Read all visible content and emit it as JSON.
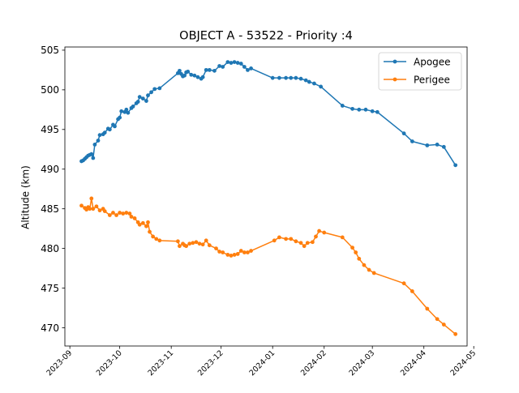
{
  "chart_data": {
    "type": "line",
    "title": "OBJECT A - 53522 - Priority :4",
    "xlabel": "",
    "ylabel": "Altitude (km)",
    "xlim": [
      "2023-08-29",
      "2024-04-27"
    ],
    "ylim": [
      467.7,
      505.4
    ],
    "x_ticks": [
      "2023-09",
      "2023-10",
      "2023-11",
      "2023-12",
      "2024-01",
      "2024-02",
      "2024-03",
      "2024-04",
      "2024-05"
    ],
    "y_ticks": [
      470,
      475,
      480,
      485,
      490,
      495,
      500,
      505
    ],
    "grid": false,
    "legend_position": "top-right",
    "series": [
      {
        "name": "Apogee",
        "color": "#1f77b4",
        "points": [
          [
            "2023-09-08",
            491.0
          ],
          [
            "2023-09-09",
            491.1
          ],
          [
            "2023-09-10",
            491.3
          ],
          [
            "2023-09-11",
            491.5
          ],
          [
            "2023-09-12",
            491.7
          ],
          [
            "2023-09-13",
            491.8
          ],
          [
            "2023-09-14",
            491.9
          ],
          [
            "2023-09-15",
            491.4
          ],
          [
            "2023-09-16",
            493.1
          ],
          [
            "2023-09-18",
            493.6
          ],
          [
            "2023-09-19",
            494.3
          ],
          [
            "2023-09-21",
            494.4
          ],
          [
            "2023-09-22",
            494.6
          ],
          [
            "2023-09-24",
            495.1
          ],
          [
            "2023-09-25",
            495.0
          ],
          [
            "2023-09-27",
            495.6
          ],
          [
            "2023-09-28",
            495.4
          ],
          [
            "2023-09-30",
            496.3
          ],
          [
            "2023-10-01",
            496.5
          ],
          [
            "2023-10-02",
            497.3
          ],
          [
            "2023-10-04",
            497.2
          ],
          [
            "2023-10-05",
            497.5
          ],
          [
            "2023-10-06",
            497.1
          ],
          [
            "2023-10-08",
            497.7
          ],
          [
            "2023-10-09",
            497.9
          ],
          [
            "2023-10-11",
            498.3
          ],
          [
            "2023-10-12",
            498.5
          ],
          [
            "2023-10-13",
            499.1
          ],
          [
            "2023-10-15",
            498.9
          ],
          [
            "2023-10-17",
            498.6
          ],
          [
            "2023-10-18",
            499.3
          ],
          [
            "2023-10-20",
            499.7
          ],
          [
            "2023-10-22",
            500.1
          ],
          [
            "2023-10-25",
            500.2
          ],
          [
            "2023-11-05",
            502.1
          ],
          [
            "2023-11-06",
            502.4
          ],
          [
            "2023-11-07",
            502.0
          ],
          [
            "2023-11-08",
            501.7
          ],
          [
            "2023-11-09",
            501.8
          ],
          [
            "2023-11-10",
            502.2
          ],
          [
            "2023-11-11",
            502.3
          ],
          [
            "2023-11-13",
            501.9
          ],
          [
            "2023-11-15",
            501.8
          ],
          [
            "2023-11-17",
            501.6
          ],
          [
            "2023-11-19",
            501.4
          ],
          [
            "2023-11-20",
            501.6
          ],
          [
            "2023-11-22",
            502.5
          ],
          [
            "2023-11-24",
            502.5
          ],
          [
            "2023-11-27",
            502.4
          ],
          [
            "2023-11-30",
            503.0
          ],
          [
            "2023-12-02",
            502.9
          ],
          [
            "2023-12-05",
            503.5
          ],
          [
            "2023-12-07",
            503.4
          ],
          [
            "2023-12-09",
            503.5
          ],
          [
            "2023-12-11",
            503.4
          ],
          [
            "2023-12-13",
            503.3
          ],
          [
            "2023-12-15",
            502.9
          ],
          [
            "2023-12-17",
            502.5
          ],
          [
            "2023-12-19",
            502.7
          ],
          [
            "2024-01-01",
            501.5
          ],
          [
            "2024-01-05",
            501.5
          ],
          [
            "2024-01-09",
            501.5
          ],
          [
            "2024-01-12",
            501.5
          ],
          [
            "2024-01-15",
            501.5
          ],
          [
            "2024-01-18",
            501.4
          ],
          [
            "2024-01-21",
            501.2
          ],
          [
            "2024-01-23",
            501.0
          ],
          [
            "2024-01-26",
            500.8
          ],
          [
            "2024-01-30",
            500.4
          ],
          [
            "2024-02-12",
            498.0
          ],
          [
            "2024-02-18",
            497.6
          ],
          [
            "2024-02-22",
            497.5
          ],
          [
            "2024-02-26",
            497.5
          ],
          [
            "2024-03-01",
            497.3
          ],
          [
            "2024-03-04",
            497.2
          ],
          [
            "2024-03-20",
            494.5
          ],
          [
            "2024-03-25",
            493.5
          ],
          [
            "2024-04-03",
            493.0
          ],
          [
            "2024-04-09",
            493.1
          ],
          [
            "2024-04-13",
            492.8
          ],
          [
            "2024-04-20",
            490.5
          ]
        ]
      },
      {
        "name": "Perigee",
        "color": "#ff7f0e",
        "points": [
          [
            "2023-09-08",
            485.4
          ],
          [
            "2023-09-10",
            485.1
          ],
          [
            "2023-09-11",
            484.9
          ],
          [
            "2023-09-12",
            485.2
          ],
          [
            "2023-09-13",
            485.0
          ],
          [
            "2023-09-14",
            486.3
          ],
          [
            "2023-09-15",
            485.0
          ],
          [
            "2023-09-17",
            485.3
          ],
          [
            "2023-09-19",
            484.8
          ],
          [
            "2023-09-21",
            485.0
          ],
          [
            "2023-09-22",
            484.7
          ],
          [
            "2023-09-25",
            484.2
          ],
          [
            "2023-09-27",
            484.5
          ],
          [
            "2023-09-29",
            484.2
          ],
          [
            "2023-10-01",
            484.5
          ],
          [
            "2023-10-03",
            484.4
          ],
          [
            "2023-10-05",
            484.5
          ],
          [
            "2023-10-07",
            484.4
          ],
          [
            "2023-10-08",
            484.0
          ],
          [
            "2023-10-10",
            483.8
          ],
          [
            "2023-10-12",
            483.3
          ],
          [
            "2023-10-13",
            483.0
          ],
          [
            "2023-10-15",
            483.2
          ],
          [
            "2023-10-17",
            482.8
          ],
          [
            "2023-10-18",
            483.3
          ],
          [
            "2023-10-19",
            482.1
          ],
          [
            "2023-10-21",
            481.5
          ],
          [
            "2023-10-23",
            481.2
          ],
          [
            "2023-10-25",
            481.0
          ],
          [
            "2023-11-05",
            480.9
          ],
          [
            "2023-11-06",
            480.3
          ],
          [
            "2023-11-08",
            480.6
          ],
          [
            "2023-11-09",
            480.4
          ],
          [
            "2023-11-10",
            480.3
          ],
          [
            "2023-11-12",
            480.6
          ],
          [
            "2023-11-14",
            480.7
          ],
          [
            "2023-11-16",
            480.8
          ],
          [
            "2023-11-18",
            480.6
          ],
          [
            "2023-11-20",
            480.5
          ],
          [
            "2023-11-22",
            481.0
          ],
          [
            "2023-11-24",
            480.4
          ],
          [
            "2023-11-28",
            480.0
          ],
          [
            "2023-11-30",
            479.6
          ],
          [
            "2023-12-02",
            479.5
          ],
          [
            "2023-12-05",
            479.2
          ],
          [
            "2023-12-07",
            479.1
          ],
          [
            "2023-12-09",
            479.2
          ],
          [
            "2023-12-11",
            479.3
          ],
          [
            "2023-12-13",
            479.7
          ],
          [
            "2023-12-15",
            479.5
          ],
          [
            "2023-12-17",
            479.5
          ],
          [
            "2023-12-19",
            479.7
          ],
          [
            "2024-01-02",
            481.0
          ],
          [
            "2024-01-05",
            481.4
          ],
          [
            "2024-01-09",
            481.2
          ],
          [
            "2024-01-12",
            481.2
          ],
          [
            "2024-01-15",
            480.9
          ],
          [
            "2024-01-18",
            480.7
          ],
          [
            "2024-01-20",
            480.3
          ],
          [
            "2024-01-22",
            480.7
          ],
          [
            "2024-01-25",
            480.8
          ],
          [
            "2024-01-27",
            481.5
          ],
          [
            "2024-01-29",
            482.2
          ],
          [
            "2024-02-01",
            482.0
          ],
          [
            "2024-02-12",
            481.4
          ],
          [
            "2024-02-18",
            480.1
          ],
          [
            "2024-02-20",
            479.5
          ],
          [
            "2024-02-22",
            478.7
          ],
          [
            "2024-02-25",
            477.9
          ],
          [
            "2024-02-28",
            477.3
          ],
          [
            "2024-03-02",
            476.9
          ],
          [
            "2024-03-20",
            475.6
          ],
          [
            "2024-03-25",
            474.6
          ],
          [
            "2024-04-03",
            472.4
          ],
          [
            "2024-04-09",
            471.1
          ],
          [
            "2024-04-13",
            470.4
          ],
          [
            "2024-04-20",
            469.2
          ]
        ]
      }
    ]
  }
}
